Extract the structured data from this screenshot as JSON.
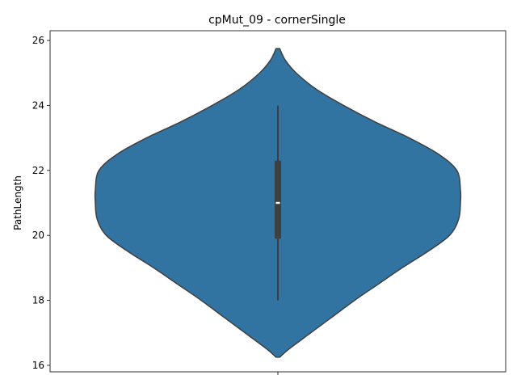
{
  "chart_data": {
    "type": "violin",
    "title": "cpMut_09 - cornerSingle",
    "xlabel": "",
    "ylabel": "PathLength",
    "categories": [
      ""
    ],
    "ylim": [
      15.8,
      26.3
    ],
    "yticks": [
      16,
      18,
      20,
      22,
      24,
      26
    ],
    "grid": false,
    "violin": {
      "color": "#3274a1",
      "edge_color": "#3f3f3f",
      "min": 16.25,
      "max": 25.75,
      "density_profile": [
        {
          "y": 16.25,
          "w": 0.01
        },
        {
          "y": 16.5,
          "w": 0.06
        },
        {
          "y": 17.0,
          "w": 0.18
        },
        {
          "y": 17.5,
          "w": 0.3
        },
        {
          "y": 18.0,
          "w": 0.42
        },
        {
          "y": 18.5,
          "w": 0.55
        },
        {
          "y": 19.0,
          "w": 0.68
        },
        {
          "y": 19.5,
          "w": 0.82
        },
        {
          "y": 20.0,
          "w": 0.94
        },
        {
          "y": 20.5,
          "w": 0.99
        },
        {
          "y": 21.0,
          "w": 1.0
        },
        {
          "y": 21.4,
          "w": 1.0
        },
        {
          "y": 22.0,
          "w": 0.98
        },
        {
          "y": 22.5,
          "w": 0.88
        },
        {
          "y": 23.0,
          "w": 0.72
        },
        {
          "y": 23.5,
          "w": 0.53
        },
        {
          "y": 24.0,
          "w": 0.36
        },
        {
          "y": 24.5,
          "w": 0.21
        },
        {
          "y": 25.0,
          "w": 0.1
        },
        {
          "y": 25.4,
          "w": 0.04
        },
        {
          "y": 25.75,
          "w": 0.01
        }
      ],
      "box": {
        "whisker_low": 18,
        "q1": 19.9,
        "median": 21,
        "q3": 22.3,
        "whisker_high": 24
      }
    }
  }
}
